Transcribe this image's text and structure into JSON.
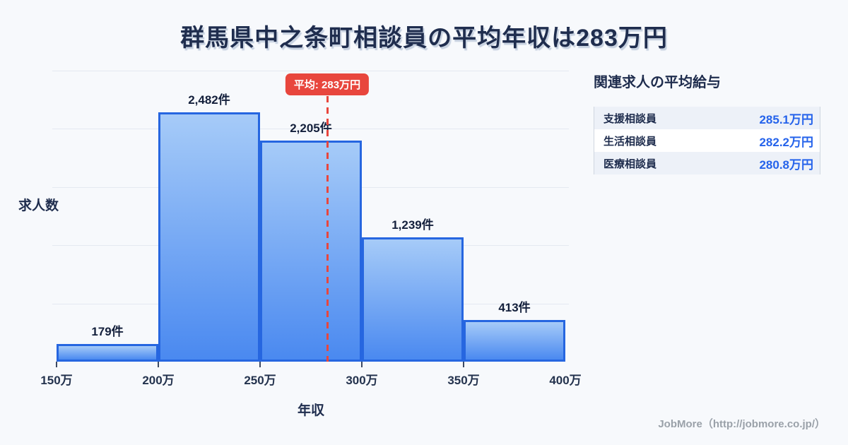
{
  "title": "群馬県中之条町相談員の平均年収は283万円",
  "chart_data": {
    "type": "bar",
    "title": "群馬県中之条町相談員の平均年収は283万円",
    "xlabel": "年収",
    "ylabel": "求人数",
    "categories": [
      "150万",
      "200万",
      "250万",
      "300万",
      "350万",
      "400万"
    ],
    "bin_edges_man_yen": [
      150,
      200,
      250,
      300,
      350,
      400
    ],
    "values": [
      179,
      2482,
      2205,
      1239,
      413
    ],
    "bar_labels": [
      "179件",
      "2,482件",
      "2,205件",
      "1,239件",
      "413件"
    ],
    "ylim": [
      0,
      2900
    ],
    "grid": true,
    "gridline_count": 5,
    "average": {
      "value_man_yen": 283,
      "label": "平均: 283万円"
    }
  },
  "side_panel": {
    "title": "関連求人の平均給与",
    "rows": [
      {
        "label": "支援相談員",
        "value": "285.1万円"
      },
      {
        "label": "生活相談員",
        "value": "282.2万円"
      },
      {
        "label": "医療相談員",
        "value": "280.8万円"
      }
    ]
  },
  "footer": {
    "credit": "JobMore（http://jobmore.co.jp/）"
  },
  "colors": {
    "background": "#f7f9fc",
    "title_text": "#1f2d4e",
    "bar_fill_top": "#a6cbf8",
    "bar_fill_bottom": "#4a89f0",
    "bar_border": "#2666e0",
    "average_red": "#e8463d",
    "gridline": "#e4e9f1",
    "value_blue": "#2563eb",
    "row_alt_background": "#edf1f8",
    "footer_gray": "#9aa1a9"
  }
}
